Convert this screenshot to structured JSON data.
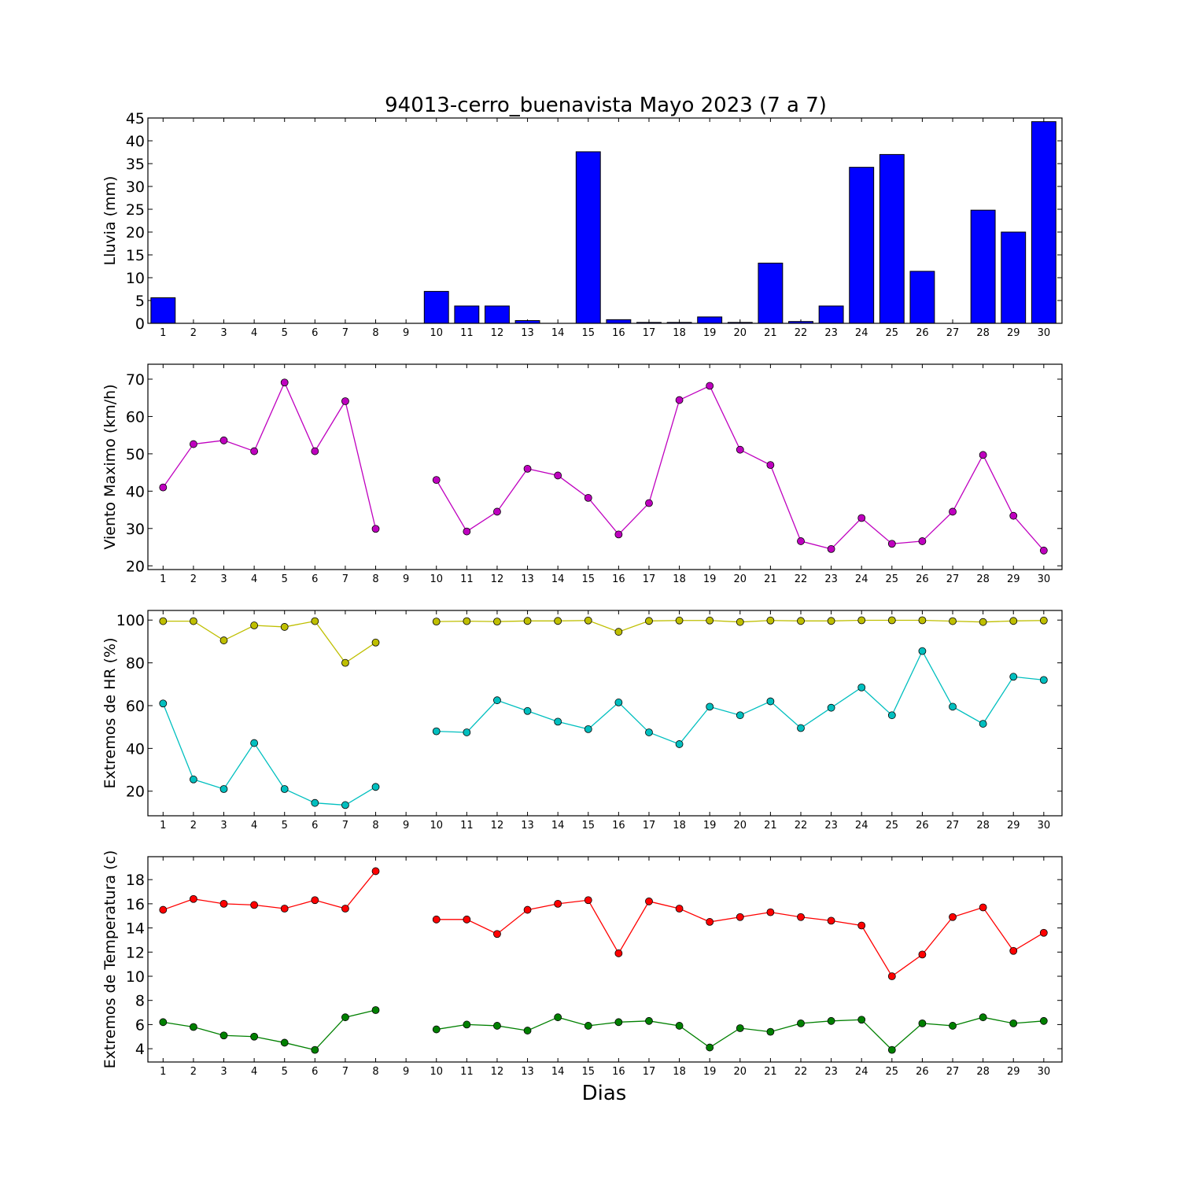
{
  "chart_data": {
    "title": "94013-cerro_buenavista Mayo 2023  (7 a 7)",
    "xlabel": "Dias",
    "categories": [
      "1",
      "2",
      "3",
      "4",
      "5",
      "6",
      "7",
      "8",
      "9",
      "10",
      "11",
      "12",
      "13",
      "14",
      "15",
      "16",
      "17",
      "18",
      "19",
      "20",
      "21",
      "22",
      "23",
      "24",
      "25",
      "26",
      "27",
      "28",
      "29",
      "30"
    ],
    "panels": [
      {
        "type": "bar",
        "ylabel": "Lluvia (mm)",
        "ylim": [
          0,
          45
        ],
        "yticks": [
          0,
          5,
          10,
          15,
          20,
          25,
          30,
          35,
          40,
          45
        ],
        "color": "#0000ff",
        "series": [
          {
            "values": [
              5.6,
              0,
              0,
              0,
              0,
              0,
              0,
              0,
              null,
              7.0,
              3.8,
              3.8,
              0.6,
              0,
              37.6,
              0.8,
              0.2,
              0.2,
              1.4,
              0.2,
              13.2,
              0.4,
              3.8,
              34.2,
              37.0,
              11.4,
              0,
              24.8,
              20.0,
              44.2
            ]
          }
        ]
      },
      {
        "type": "line",
        "ylabel": "Viento Maximo (km/h)",
        "ylim": [
          19,
          74
        ],
        "yticks": [
          20,
          30,
          40,
          50,
          60,
          70
        ],
        "series": [
          {
            "color": "#bf00bf",
            "values": [
              41.0,
              52.6,
              53.6,
              50.7,
              69.1,
              50.7,
              64.1,
              29.9,
              null,
              43.0,
              29.2,
              34.5,
              46.0,
              44.2,
              38.2,
              28.4,
              36.8,
              64.4,
              68.2,
              51.1,
              47.0,
              26.6,
              24.5,
              32.8,
              25.9,
              26.6,
              34.5,
              49.7,
              33.4,
              24.1
            ]
          }
        ]
      },
      {
        "type": "line",
        "ylabel": "Extremos de HR (%)",
        "ylim": [
          8.5,
          104.5
        ],
        "yticks": [
          20,
          40,
          60,
          80,
          100
        ],
        "series": [
          {
            "color": "#bfbf00",
            "values": [
              99.5,
              99.5,
              90.5,
              97.5,
              96.8,
              99.5,
              80.0,
              89.5,
              null,
              99.3,
              99.5,
              99.3,
              99.6,
              99.6,
              99.8,
              94.5,
              99.6,
              99.8,
              99.8,
              99.1,
              99.8,
              99.6,
              99.6,
              99.9,
              99.9,
              99.9,
              99.5,
              99.1,
              99.6,
              99.8
            ]
          },
          {
            "color": "#00bfbf",
            "values": [
              61.0,
              25.5,
              21.0,
              42.5,
              21.0,
              14.5,
              13.5,
              22.0,
              null,
              48.0,
              47.5,
              62.5,
              57.5,
              52.5,
              49.0,
              61.5,
              47.5,
              42.0,
              59.5,
              55.5,
              62.0,
              49.5,
              59.0,
              68.5,
              55.5,
              85.5,
              59.5,
              51.5,
              73.5,
              72.0
            ]
          }
        ]
      },
      {
        "type": "line",
        "ylabel": "Extremos de Temperatura (c)",
        "ylim": [
          2.9,
          19.9
        ],
        "yticks": [
          4,
          6,
          8,
          10,
          12,
          14,
          16,
          18
        ],
        "series": [
          {
            "color": "#ff0000",
            "values": [
              15.5,
              16.4,
              16.0,
              15.9,
              15.6,
              16.3,
              15.6,
              18.7,
              null,
              14.7,
              14.7,
              13.5,
              15.5,
              16.0,
              16.3,
              11.9,
              16.2,
              15.6,
              14.5,
              14.9,
              15.3,
              14.9,
              14.6,
              14.2,
              10.0,
              11.8,
              14.9,
              15.7,
              12.1,
              13.6
            ]
          },
          {
            "color": "#008000",
            "values": [
              6.2,
              5.8,
              5.1,
              5.0,
              4.5,
              3.9,
              6.6,
              7.2,
              null,
              5.6,
              6.0,
              5.9,
              5.5,
              6.6,
              5.9,
              6.2,
              6.3,
              5.9,
              4.1,
              5.7,
              5.4,
              6.1,
              6.3,
              6.4,
              3.9,
              6.1,
              5.9,
              6.6,
              6.1,
              6.3
            ]
          }
        ]
      }
    ]
  }
}
